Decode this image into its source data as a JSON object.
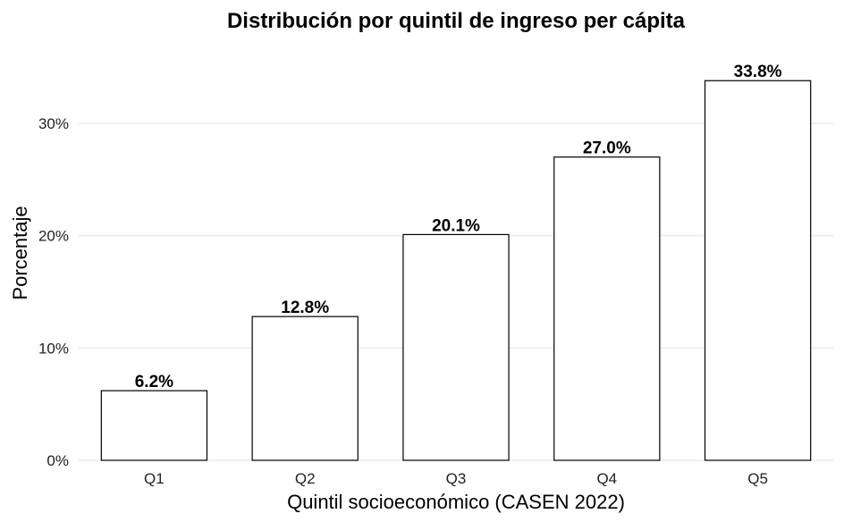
{
  "chart_data": {
    "type": "bar",
    "title": "Distribución por quintil de ingreso per cápita",
    "xlabel": "Quintil socioeconómico (CASEN 2022)",
    "ylabel": "Porcentaje",
    "categories": [
      "Q1",
      "Q2",
      "Q3",
      "Q4",
      "Q5"
    ],
    "values": [
      6.2,
      12.8,
      20.1,
      27.0,
      33.8
    ],
    "data_labels": [
      "6.2%",
      "12.8%",
      "20.1%",
      "27.0%",
      "33.8%"
    ],
    "ylim": [
      0,
      35
    ],
    "yticks": [
      0,
      10,
      20,
      30
    ],
    "ytick_labels": [
      "0%",
      "10%",
      "20%",
      "30%"
    ],
    "grid": true,
    "bar_fill": "#ffffff",
    "bar_stroke": "#000000"
  }
}
